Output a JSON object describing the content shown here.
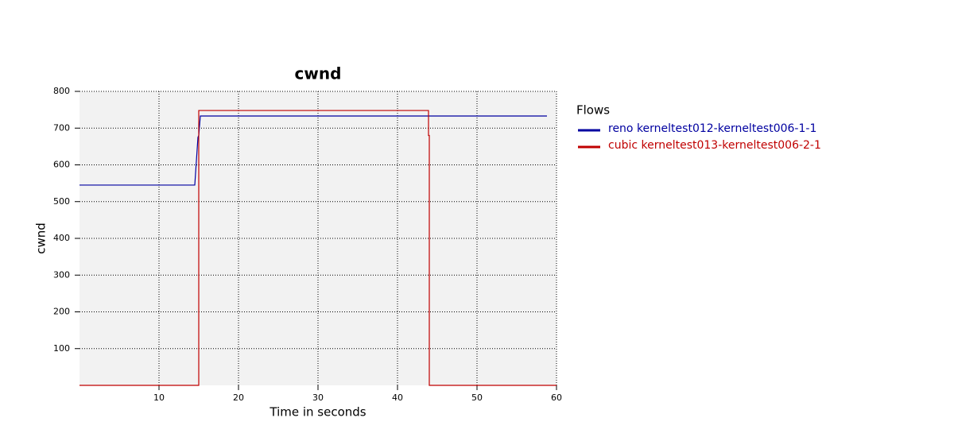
{
  "chart_data": {
    "type": "line",
    "title": "cwnd",
    "xlabel": "Time in seconds",
    "ylabel": "cwnd",
    "legend_title": "Flows",
    "xlim": [
      0,
      60
    ],
    "ylim": [
      0,
      800
    ],
    "xticks": [
      10,
      20,
      30,
      40,
      50,
      60
    ],
    "yticks": [
      100,
      200,
      300,
      400,
      500,
      600,
      700,
      800
    ],
    "grid": true,
    "series": [
      {
        "name": "reno kerneltest012-kerneltest006-1-1",
        "color": "#0000a0",
        "x": [
          0,
          14.5,
          14.9,
          15.0,
          15.2,
          58.8
        ],
        "values": [
          545,
          545,
          675,
          680,
          733,
          733
        ]
      },
      {
        "name": "cubic kerneltest013-kerneltest006-2-1",
        "color": "#c00000",
        "x": [
          0,
          15,
          15,
          43.9,
          43.9,
          44,
          44,
          60
        ],
        "values": [
          0,
          0,
          748,
          748,
          680,
          680,
          0,
          0
        ]
      }
    ]
  }
}
